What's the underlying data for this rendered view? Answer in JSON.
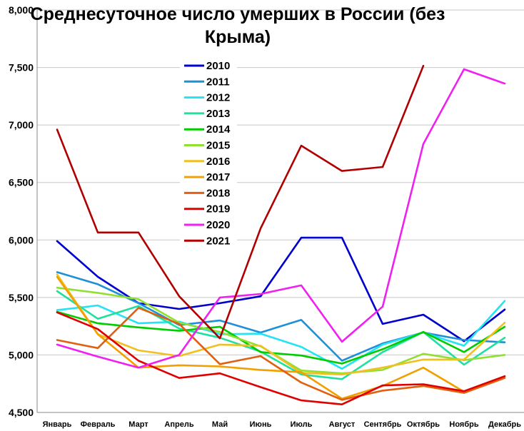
{
  "chart_data": {
    "type": "line",
    "title": "Среднесуточное число умерших в России (без Крыма)",
    "categories": [
      "Январь",
      "Февраль",
      "Март",
      "Апрель",
      "Май",
      "Июнь",
      "Июль",
      "Август",
      "Сентябрь",
      "Октябрь",
      "Ноябрь",
      "Декабрь"
    ],
    "ylim": [
      4500,
      8000
    ],
    "yticks": [
      4500,
      5000,
      5500,
      6000,
      6500,
      7000,
      7500,
      8000
    ],
    "ytick_labels": [
      "4,500",
      "5,000",
      "5,500",
      "6,000",
      "6,500",
      "7,000",
      "7,500",
      "8,000"
    ],
    "grid": "horizontal",
    "legend": "top-center",
    "series": [
      {
        "name": "2010",
        "color": "#0000cc",
        "values": [
          5990,
          5680,
          5450,
          5400,
          5450,
          5510,
          6020,
          6020,
          5270,
          5350,
          5120,
          5395
        ]
      },
      {
        "name": "2011",
        "color": "#1e90d8",
        "values": [
          5720,
          5615,
          5450,
          5260,
          5300,
          5195,
          5305,
          4950,
          5100,
          5195,
          5130,
          5110
        ]
      },
      {
        "name": "2012",
        "color": "#22e4f4",
        "values": [
          5390,
          5430,
          5275,
          5290,
          5180,
          5185,
          5070,
          4880,
          5090,
          5195,
          5080,
          5470
        ]
      },
      {
        "name": "2013",
        "color": "#20e0a0",
        "values": [
          5555,
          5315,
          5425,
          5230,
          5150,
          5030,
          4830,
          4790,
          5025,
          5200,
          4915,
          5150
        ]
      },
      {
        "name": "2014",
        "color": "#00cc00",
        "values": [
          5375,
          5275,
          5240,
          5210,
          5245,
          5025,
          4995,
          4925,
          5050,
          5200,
          5025,
          5245
        ]
      },
      {
        "name": "2015",
        "color": "#90e030",
        "values": [
          5585,
          5540,
          5485,
          5280,
          5200,
          5075,
          4865,
          4840,
          4870,
          5010,
          4955,
          5000
        ]
      },
      {
        "name": "2016",
        "color": "#f0c020",
        "values": [
          5700,
          5180,
          5040,
          4990,
          5090,
          5080,
          4845,
          4830,
          4890,
          4960,
          4960,
          5280
        ]
      },
      {
        "name": "2017",
        "color": "#f0a000",
        "values": [
          5680,
          5180,
          4890,
          4910,
          4900,
          4870,
          4850,
          4620,
          4730,
          4890,
          4680,
          4810
        ]
      },
      {
        "name": "2018",
        "color": "#e06010",
        "values": [
          5130,
          5060,
          5410,
          5270,
          4920,
          4990,
          4760,
          4610,
          4690,
          4730,
          4670,
          4800
        ]
      },
      {
        "name": "2019",
        "color": "#e00000",
        "values": [
          5370,
          5225,
          4950,
          4800,
          4840,
          4720,
          4605,
          4570,
          4735,
          4745,
          4685,
          4815
        ]
      },
      {
        "name": "2020",
        "color": "#f020f0",
        "values": [
          5090,
          4985,
          4890,
          5000,
          5500,
          5530,
          5605,
          5115,
          5420,
          6835,
          7485,
          7360
        ]
      },
      {
        "name": "2021",
        "color": "#b00000",
        "values": [
          6960,
          6065,
          6065,
          5510,
          5145,
          6100,
          6820,
          6600,
          6635,
          7515,
          null,
          null
        ]
      }
    ]
  }
}
